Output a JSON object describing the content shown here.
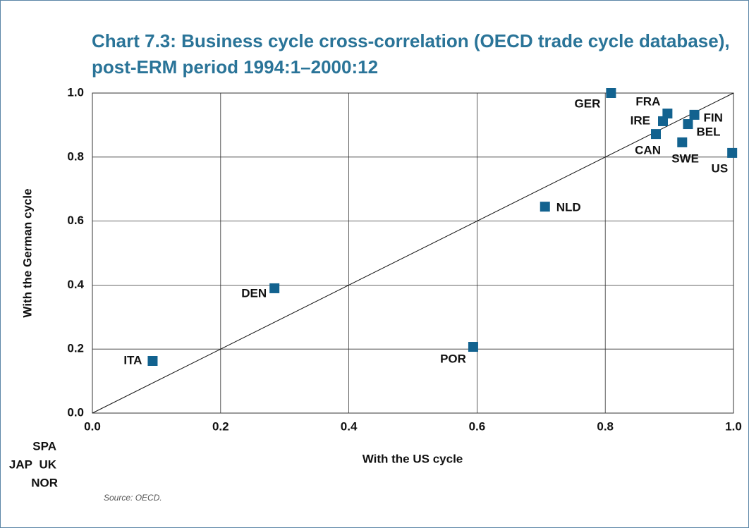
{
  "chart_data": {
    "type": "scatter",
    "title": "Chart 7.3: Business cycle cross-correlation (OECD trade cycle database), post-ERM period 1994:1–2000:12",
    "xlabel": "With the US cycle",
    "ylabel": "With the German cycle",
    "source": "Source: OECD.",
    "labels": [
      "GER",
      "FRA",
      "IRE",
      "FIN",
      "BEL",
      "CAN",
      "SWE",
      "US",
      "NLD",
      "DEN",
      "POR",
      "ITA",
      "SPA",
      "JAP",
      "UK",
      "NOR"
    ],
    "x": [
      0.809,
      0.897,
      0.89,
      0.939,
      0.929,
      0.879,
      0.92,
      0.998,
      0.706,
      0.284,
      0.594,
      0.094,
      null,
      null,
      null,
      null
    ],
    "y": [
      1.0,
      0.936,
      0.912,
      0.932,
      0.903,
      0.872,
      0.846,
      0.813,
      0.645,
      0.39,
      0.207,
      0.163,
      null,
      null,
      null,
      null
    ],
    "color": "#12628f",
    "xlim": [
      0,
      1
    ],
    "ylim": [
      0,
      1
    ],
    "xticks": [
      {
        "value": 0,
        "label": "0.0"
      },
      0.2,
      0.4,
      0.6,
      0.8,
      {
        "value": 1,
        "label": "1.0"
      }
    ],
    "yticks": [
      {
        "value": 0,
        "label": "0.0"
      },
      0.2,
      0.4,
      0.6,
      0.8,
      {
        "value": 1,
        "label": "1.0"
      }
    ],
    "grid": true
  }
}
